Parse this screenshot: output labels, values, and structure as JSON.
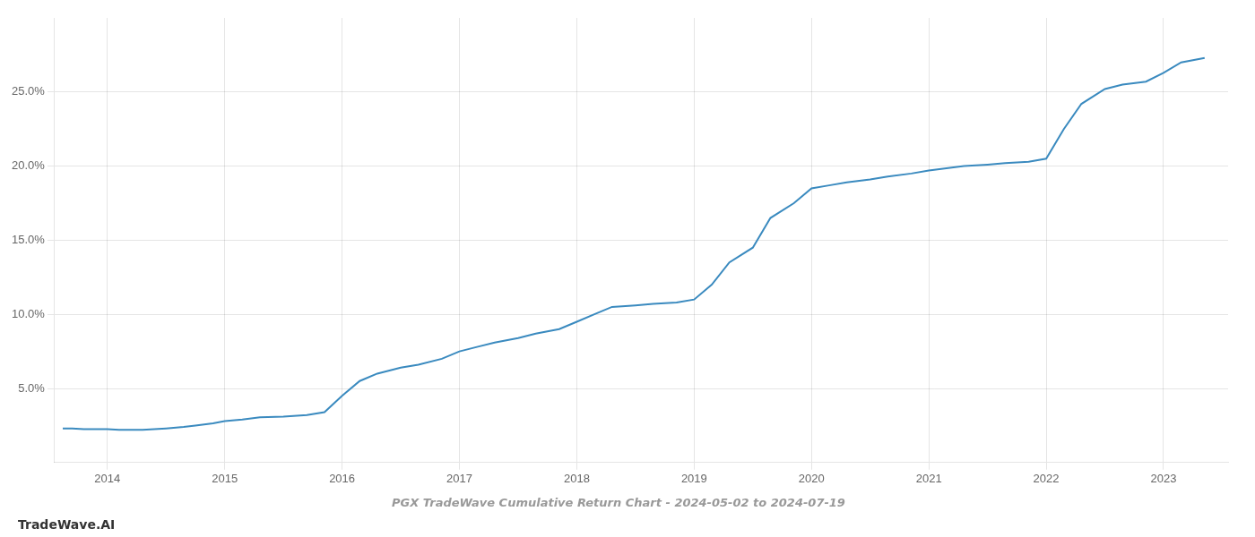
{
  "chart_data": {
    "type": "line",
    "title": "PGX TradeWave Cumulative Return Chart - 2024-05-02 to 2024-07-19",
    "annotations": [
      "TradeWave.AI"
    ],
    "color": "#3a8abf",
    "grid": true,
    "x": [
      2013.62,
      2013.7,
      2013.8,
      2013.9,
      2014.0,
      2014.1,
      2014.2,
      2014.3,
      2014.5,
      2014.65,
      2014.75,
      2014.9,
      2015.0,
      2015.15,
      2015.3,
      2015.5,
      2015.7,
      2015.85,
      2016.0,
      2016.15,
      2016.3,
      2016.5,
      2016.65,
      2016.85,
      2017.0,
      2017.15,
      2017.3,
      2017.5,
      2017.65,
      2017.85,
      2018.0,
      2018.15,
      2018.3,
      2018.5,
      2018.65,
      2018.85,
      2019.0,
      2019.15,
      2019.3,
      2019.5,
      2019.65,
      2019.85,
      2020.0,
      2020.15,
      2020.3,
      2020.5,
      2020.65,
      2020.85,
      2021.0,
      2021.15,
      2021.3,
      2021.5,
      2021.65,
      2021.85,
      2022.0,
      2022.15,
      2022.3,
      2022.5,
      2022.65,
      2022.85,
      2023.0,
      2023.15,
      2023.35
    ],
    "values": [
      2.3,
      2.3,
      2.25,
      2.25,
      2.25,
      2.2,
      2.2,
      2.2,
      2.3,
      2.4,
      2.5,
      2.65,
      2.8,
      2.9,
      3.05,
      3.1,
      3.2,
      3.4,
      4.5,
      5.5,
      6.0,
      6.4,
      6.6,
      7.0,
      7.5,
      7.8,
      8.1,
      8.4,
      8.7,
      9.0,
      9.5,
      10.0,
      10.5,
      10.6,
      10.7,
      10.8,
      11.0,
      12.0,
      13.5,
      14.5,
      16.5,
      17.5,
      18.5,
      18.7,
      18.9,
      19.1,
      19.3,
      19.5,
      19.7,
      19.85,
      20.0,
      20.1,
      20.2,
      20.3,
      20.5,
      22.5,
      24.2,
      25.2,
      25.5,
      25.7,
      26.3,
      27.0,
      27.3
    ],
    "xlim": [
      2013.55,
      2023.55
    ],
    "xticks": [
      2014,
      2015,
      2016,
      2017,
      2018,
      2019,
      2020,
      2021,
      2022,
      2023
    ],
    "ylim": [
      0,
      30
    ],
    "yticks": [
      {
        "value": 5.0,
        "label": "5.0%"
      },
      {
        "value": 10.0,
        "label": "10.0%"
      },
      {
        "value": 15.0,
        "label": "15.0%"
      },
      {
        "value": 20.0,
        "label": "20.0%"
      },
      {
        "value": 25.0,
        "label": "25.0%"
      }
    ]
  }
}
